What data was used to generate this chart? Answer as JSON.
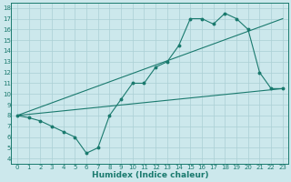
{
  "xlabel": "Humidex (Indice chaleur)",
  "bg_color": "#cce8ec",
  "line_color": "#1a7a6e",
  "xlim": [
    -0.5,
    23.5
  ],
  "ylim": [
    3.5,
    18.5
  ],
  "xticks": [
    0,
    1,
    2,
    3,
    4,
    5,
    6,
    7,
    8,
    9,
    10,
    11,
    12,
    13,
    14,
    15,
    16,
    17,
    18,
    19,
    20,
    21,
    22,
    23
  ],
  "yticks": [
    4,
    5,
    6,
    7,
    8,
    9,
    10,
    11,
    12,
    13,
    14,
    15,
    16,
    17,
    18
  ],
  "line1_x": [
    0,
    1,
    2,
    3,
    4,
    5,
    6,
    7,
    8,
    9,
    10,
    11,
    12,
    13,
    14,
    15,
    16,
    17,
    18,
    19,
    20,
    21,
    22,
    23
  ],
  "line1_y": [
    8.0,
    7.8,
    7.5,
    7.0,
    6.5,
    6.0,
    4.5,
    5.0,
    8.0,
    9.5,
    11.0,
    11.0,
    12.5,
    13.0,
    14.5,
    17.0,
    17.0,
    16.5,
    17.5,
    17.0,
    16.0,
    12.0,
    10.5,
    10.5
  ],
  "line2_x": [
    0,
    23
  ],
  "line2_y": [
    8.0,
    10.5
  ],
  "line3_x": [
    0,
    23
  ],
  "line3_y": [
    8.0,
    17.0
  ],
  "grid_color": "#aacfd4",
  "font_color": "#1a7a6e",
  "tick_fontsize": 5.0,
  "label_fontsize": 6.5
}
